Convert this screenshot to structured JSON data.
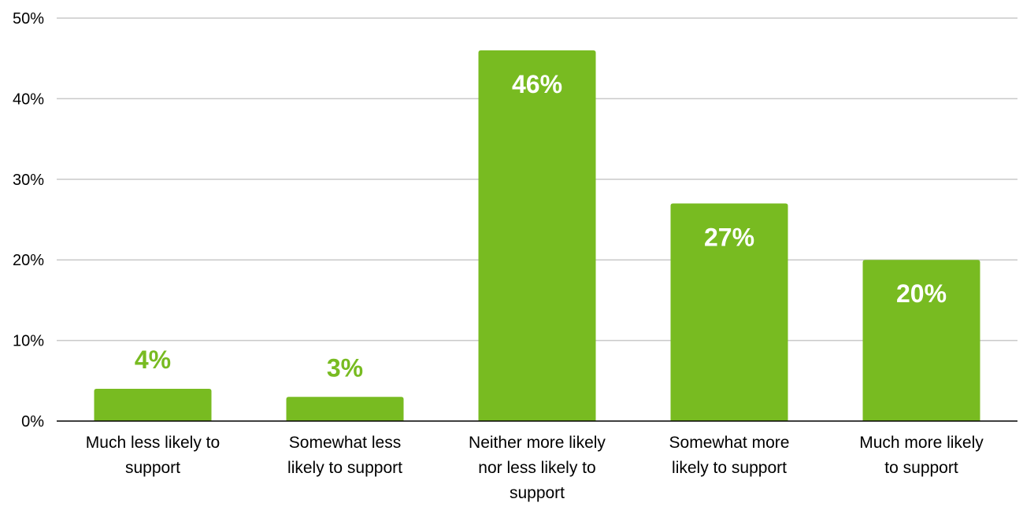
{
  "chart_data": {
    "type": "bar",
    "categories": [
      [
        "Much less likely to",
        "support"
      ],
      [
        "Somewhat less",
        "likely to support"
      ],
      [
        "Neither more likely",
        "nor less likely to",
        "support"
      ],
      [
        "Somewhat more",
        "likely to support"
      ],
      [
        "Much more likely",
        "to support"
      ]
    ],
    "values": [
      4,
      3,
      46,
      27,
      20
    ],
    "data_labels": [
      "4%",
      "3%",
      "46%",
      "27%",
      "20%"
    ],
    "ylim": [
      0,
      50
    ],
    "yticks": [
      0,
      10,
      20,
      30,
      40,
      50
    ],
    "ytick_labels": [
      "0%",
      "10%",
      "20%",
      "30%",
      "40%",
      "50%"
    ],
    "title": "",
    "xlabel": "",
    "ylabel": "",
    "grid": true,
    "legend": "none",
    "colors": {
      "bar": "#78bb21",
      "label_inside": "#ffffff",
      "label_outside": "#78bb21",
      "gridline": "#c9c9c9",
      "axis": "#000000"
    }
  }
}
